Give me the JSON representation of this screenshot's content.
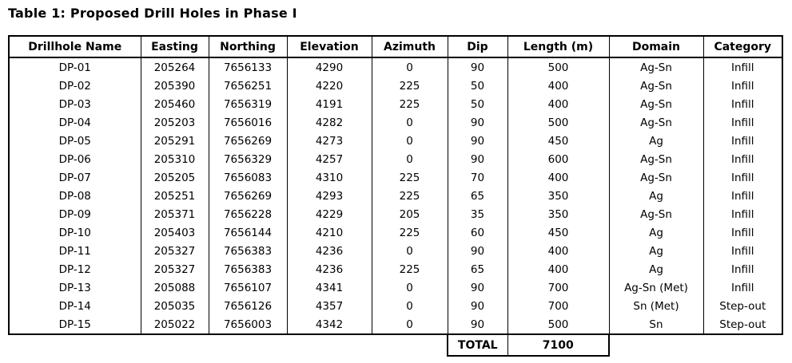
{
  "page": {
    "title": "Table 1: Proposed Drill Holes in Phase I"
  },
  "table": {
    "columns": [
      "Drillhole Name",
      "Easting",
      "Northing",
      "Elevation",
      "Azimuth",
      "Dip",
      "Length (m)",
      "Domain",
      "Category"
    ],
    "rows": [
      [
        "DP-01",
        "205264",
        "7656133",
        "4290",
        "0",
        "90",
        "500",
        "Ag-Sn",
        "Infill"
      ],
      [
        "DP-02",
        "205390",
        "7656251",
        "4220",
        "225",
        "50",
        "400",
        "Ag-Sn",
        "Infill"
      ],
      [
        "DP-03",
        "205460",
        "7656319",
        "4191",
        "225",
        "50",
        "400",
        "Ag-Sn",
        "Infill"
      ],
      [
        "DP-04",
        "205203",
        "7656016",
        "4282",
        "0",
        "90",
        "500",
        "Ag-Sn",
        "Infill"
      ],
      [
        "DP-05",
        "205291",
        "7656269",
        "4273",
        "0",
        "90",
        "450",
        "Ag",
        "Infill"
      ],
      [
        "DP-06",
        "205310",
        "7656329",
        "4257",
        "0",
        "90",
        "600",
        "Ag-Sn",
        "Infill"
      ],
      [
        "DP-07",
        "205205",
        "7656083",
        "4310",
        "225",
        "70",
        "400",
        "Ag-Sn",
        "Infill"
      ],
      [
        "DP-08",
        "205251",
        "7656269",
        "4293",
        "225",
        "65",
        "350",
        "Ag",
        "Infill"
      ],
      [
        "DP-09",
        "205371",
        "7656228",
        "4229",
        "205",
        "35",
        "350",
        "Ag-Sn",
        "Infill"
      ],
      [
        "DP-10",
        "205403",
        "7656144",
        "4210",
        "225",
        "60",
        "450",
        "Ag",
        "Infill"
      ],
      [
        "DP-11",
        "205327",
        "7656383",
        "4236",
        "0",
        "90",
        "400",
        "Ag",
        "Infill"
      ],
      [
        "DP-12",
        "205327",
        "7656383",
        "4236",
        "225",
        "65",
        "400",
        "Ag",
        "Infill"
      ],
      [
        "DP-13",
        "205088",
        "7656107",
        "4341",
        "0",
        "90",
        "700",
        "Ag-Sn (Met)",
        "Infill"
      ],
      [
        "DP-14",
        "205035",
        "7656126",
        "4357",
        "0",
        "90",
        "700",
        "Sn (Met)",
        "Step-out"
      ],
      [
        "DP-15",
        "205022",
        "7656003",
        "4342",
        "0",
        "90",
        "500",
        "Sn",
        "Step-out"
      ]
    ],
    "total": {
      "label": "TOTAL",
      "value": "7100"
    }
  },
  "colors": {
    "text": "#000000",
    "border": "#000000",
    "background": "#ffffff"
  }
}
